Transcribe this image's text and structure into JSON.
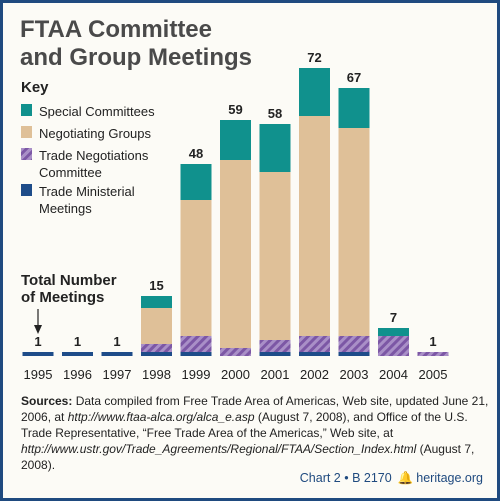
{
  "title_line1": "FTAA Committee",
  "title_line2": "and Group Meetings",
  "key_label": "Key",
  "total_label": "Total Number\nof Meetings",
  "legend": [
    {
      "label": "Special Committees",
      "color": "#10918d",
      "pattern": "solid"
    },
    {
      "label": "Negotiating Groups",
      "color": "#dfc098",
      "pattern": "solid"
    },
    {
      "label": "Trade Negotiations\nCommittee",
      "color": "#8e6ab5",
      "pattern": "hatched"
    },
    {
      "label": "Trade Ministerial\nMeetings",
      "color": "#1e4c89",
      "pattern": "solid"
    }
  ],
  "chart_data": {
    "type": "bar",
    "stacked": true,
    "categories": [
      "1995",
      "1996",
      "1997",
      "1998",
      "1999",
      "2000",
      "2001",
      "2002",
      "2003",
      "2004",
      "2005"
    ],
    "series": [
      {
        "name": "Trade Ministerial Meetings",
        "values": [
          1,
          1,
          1,
          1,
          1,
          0,
          1,
          1,
          1,
          0,
          0
        ]
      },
      {
        "name": "Trade Negotiations Committee",
        "values": [
          0,
          0,
          0,
          2,
          4,
          2,
          3,
          4,
          4,
          5,
          1
        ]
      },
      {
        "name": "Negotiating Groups",
        "values": [
          0,
          0,
          0,
          9,
          34,
          47,
          42,
          55,
          52,
          0,
          0
        ]
      },
      {
        "name": "Special Committees",
        "values": [
          0,
          0,
          0,
          3,
          9,
          10,
          12,
          12,
          10,
          2,
          0
        ]
      }
    ],
    "totals": [
      "1",
      "1",
      "1",
      "15",
      "48",
      "59",
      "58",
      "72",
      "67",
      "7",
      "1"
    ],
    "ylim": [
      0,
      80
    ],
    "grid": false,
    "legend_position": "top-left"
  },
  "sources": {
    "lead": "Sources:",
    "p1": " Data compiled from Free Trade Area of Americas, Web site, updated June 21, 2006, at ",
    "url1": "http://www.ftaa-alca.org/alca_e.asp",
    "p2": " (August 7, 2008), and Office of the U.S. Trade Representative, “Free Trade Area of the Americas,” Web site, at ",
    "url2": "http://www.ustr.gov/Trade_Agreements/Regional/FTAA/Section_Index.html",
    "p3": " (August 7, 2008)."
  },
  "footer": {
    "chart_id": "Chart 2 • B 2170",
    "site": "heritage.org"
  }
}
